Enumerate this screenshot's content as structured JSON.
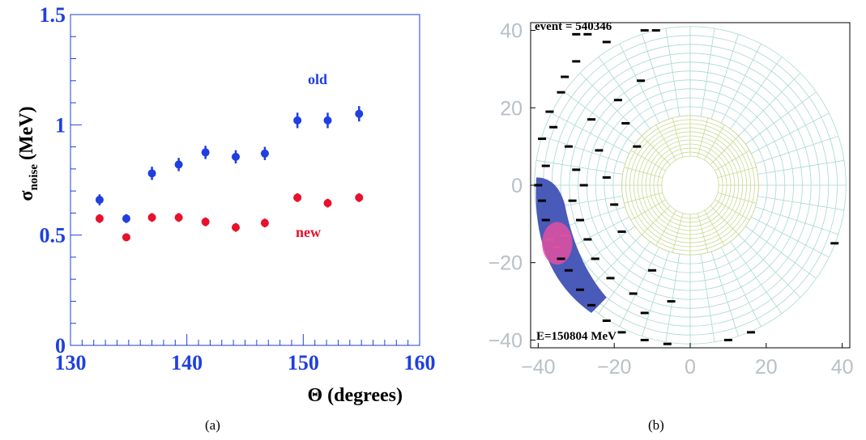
{
  "chart_data": [
    {
      "type": "scatter",
      "xlabel": "Θ (degrees)",
      "ylabel_main": "σ",
      "ylabel_sub": "noise",
      "ylabel_unit": "(MeV)",
      "xlim": [
        130,
        160
      ],
      "ylim": [
        0,
        1.5
      ],
      "xticks": [
        "130",
        "140",
        "150",
        "160"
      ],
      "yticks": [
        "0",
        "0.5",
        "1",
        "1.5"
      ],
      "series": [
        {
          "name": "old",
          "color": "#1f3fe0",
          "points": [
            {
              "x": 132.5,
              "y": 0.66,
              "err": 0.025
            },
            {
              "x": 134.8,
              "y": 0.575,
              "err": 0.02
            },
            {
              "x": 137.0,
              "y": 0.78,
              "err": 0.03
            },
            {
              "x": 139.3,
              "y": 0.82,
              "err": 0.03
            },
            {
              "x": 141.6,
              "y": 0.875,
              "err": 0.03
            },
            {
              "x": 144.2,
              "y": 0.855,
              "err": 0.03
            },
            {
              "x": 146.7,
              "y": 0.87,
              "err": 0.03
            },
            {
              "x": 149.5,
              "y": 1.02,
              "err": 0.035
            },
            {
              "x": 152.1,
              "y": 1.02,
              "err": 0.035
            },
            {
              "x": 154.8,
              "y": 1.05,
              "err": 0.035
            }
          ]
        },
        {
          "name": "new",
          "color": "#e8102a",
          "points": [
            {
              "x": 132.5,
              "y": 0.575,
              "err": 0.02
            },
            {
              "x": 134.8,
              "y": 0.49,
              "err": 0.015
            },
            {
              "x": 137.0,
              "y": 0.58,
              "err": 0.02
            },
            {
              "x": 139.3,
              "y": 0.58,
              "err": 0.02
            },
            {
              "x": 141.6,
              "y": 0.56,
              "err": 0.02
            },
            {
              "x": 144.2,
              "y": 0.535,
              "err": 0.02
            },
            {
              "x": 146.7,
              "y": 0.555,
              "err": 0.02
            },
            {
              "x": 149.5,
              "y": 0.67,
              "err": 0.02
            },
            {
              "x": 152.1,
              "y": 0.645,
              "err": 0.02
            },
            {
              "x": 154.8,
              "y": 0.67,
              "err": 0.02
            }
          ]
        }
      ]
    },
    {
      "type": "heatmap",
      "title": "event = 540346",
      "annotation": "E=150804 MeV",
      "xlim": [
        -42,
        42
      ],
      "ylim": [
        -42,
        42
      ],
      "xticks": [
        "−40",
        "−20",
        "0",
        "20",
        "40"
      ],
      "yticks": [
        "40",
        "20",
        "0",
        "−20",
        "−40"
      ],
      "grid": {
        "outer_radius": 41,
        "inner_radius": 7.5,
        "endcap_radius": 18,
        "rings_outer": 10,
        "rings_inner": 10,
        "sectors_outer": 40,
        "sectors_inner": 24
      },
      "colors": {
        "grid_outer": "#a8d8d0",
        "grid_inner": "#c8d890",
        "low": "#000000",
        "mid": "#4a5ab8",
        "high": "#e050a0"
      },
      "hits": [
        {
          "x": -30,
          "y": 39,
          "e": 1
        },
        {
          "x": -27,
          "y": 39,
          "e": 1
        },
        {
          "x": -22,
          "y": 37,
          "e": 1
        },
        {
          "x": -12,
          "y": 40,
          "e": 1
        },
        {
          "x": -9,
          "y": 40,
          "e": 1
        },
        {
          "x": -30,
          "y": 32,
          "e": 1
        },
        {
          "x": -33,
          "y": 28,
          "e": 1
        },
        {
          "x": -34,
          "y": 24,
          "e": 1
        },
        {
          "x": -37,
          "y": 19,
          "e": 1
        },
        {
          "x": -36,
          "y": 15,
          "e": 2
        },
        {
          "x": -39,
          "y": 12,
          "e": 1
        },
        {
          "x": -38,
          "y": 5,
          "e": 2
        },
        {
          "x": -40,
          "y": 0,
          "e": 2
        },
        {
          "x": -39,
          "y": -4,
          "e": 2
        },
        {
          "x": -38,
          "y": -9,
          "e": 2
        },
        {
          "x": -37,
          "y": -14,
          "e": 3
        },
        {
          "x": -35,
          "y": -16,
          "e": 3
        },
        {
          "x": -33,
          "y": -13,
          "e": 3
        },
        {
          "x": -34,
          "y": -19,
          "e": 2
        },
        {
          "x": -32,
          "y": -22,
          "e": 2
        },
        {
          "x": -29,
          "y": -27,
          "e": 2
        },
        {
          "x": -26,
          "y": -31,
          "e": 1
        },
        {
          "x": -22,
          "y": -35,
          "e": 1
        },
        {
          "x": -18,
          "y": -38,
          "e": 1
        },
        {
          "x": -12,
          "y": -40,
          "e": 1
        },
        {
          "x": -6,
          "y": -41,
          "e": 1
        },
        {
          "x": -32,
          "y": 10,
          "e": 1
        },
        {
          "x": -30,
          "y": 4,
          "e": 1
        },
        {
          "x": -28,
          "y": 0,
          "e": 1
        },
        {
          "x": -31,
          "y": -4,
          "e": 2
        },
        {
          "x": -29,
          "y": -9,
          "e": 1
        },
        {
          "x": -27,
          "y": -14,
          "e": 1
        },
        {
          "x": -25,
          "y": -19,
          "e": 1
        },
        {
          "x": -21,
          "y": -24,
          "e": 1
        },
        {
          "x": -15,
          "y": -28,
          "e": 1
        },
        {
          "x": -12,
          "y": -33,
          "e": 1
        },
        {
          "x": -26,
          "y": 17,
          "e": 1
        },
        {
          "x": -24,
          "y": 9,
          "e": 1
        },
        {
          "x": -22,
          "y": 2,
          "e": 1
        },
        {
          "x": -20,
          "y": -5,
          "e": 1
        },
        {
          "x": -18,
          "y": -12,
          "e": 1
        },
        {
          "x": -10,
          "y": -22,
          "e": 1
        },
        {
          "x": -5,
          "y": -30,
          "e": 1
        },
        {
          "x": 10,
          "y": -40,
          "e": 1
        },
        {
          "x": 16,
          "y": -38,
          "e": 1
        },
        {
          "x": 38,
          "y": -15,
          "e": 1
        },
        {
          "x": -14,
          "y": 10,
          "e": 1
        },
        {
          "x": -17,
          "y": 16,
          "e": 1
        },
        {
          "x": -19,
          "y": 22,
          "e": 1
        },
        {
          "x": -13,
          "y": 27,
          "e": 1
        }
      ]
    }
  ],
  "labels": {
    "legend_old": "old",
    "legend_new": "new",
    "caption_a": "(a)",
    "caption_b": "(b)"
  }
}
